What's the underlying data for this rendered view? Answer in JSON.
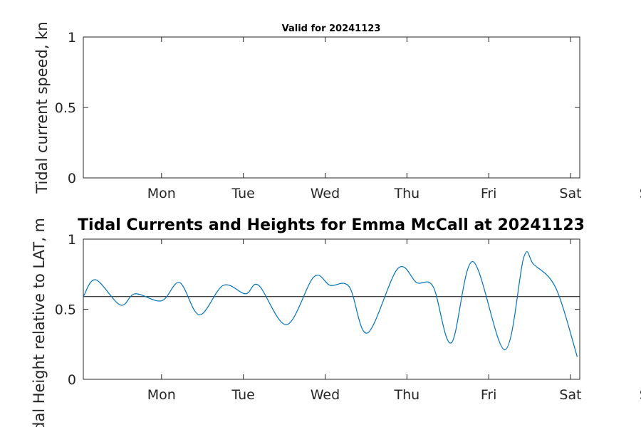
{
  "chart_data": [
    {
      "type": "line",
      "title": "Valid for 20241123",
      "ylabel": "Tidal current speed, kn",
      "ylim": [
        0,
        1
      ],
      "yticks": [
        "0",
        "0.5",
        "1"
      ],
      "xtick_labels": [
        "Mon",
        "Tue",
        "Wed",
        "Thu",
        "Fri",
        "Sat",
        "Sun"
      ],
      "series": []
    },
    {
      "type": "line",
      "title": "Tidal Currents and Heights for Emma McCall at 20241123",
      "ylabel": "Tidal Height relative to LAT, m",
      "ylim": [
        0,
        1
      ],
      "yticks": [
        "0",
        "0.5",
        "1"
      ],
      "xtick_labels": [
        "Mon",
        "Tue",
        "Wed",
        "Thu",
        "Fri",
        "Sat",
        "Sun"
      ],
      "reference_level": 0.59,
      "series": [
        {
          "color": "#0072BD",
          "x": [
            0,
            0.15,
            0.45,
            0.63,
            0.95,
            1.17,
            1.41,
            1.7,
            1.97,
            2.13,
            2.47,
            2.8,
            3.0,
            3.23,
            3.45,
            3.82,
            4.05,
            4.25,
            4.47,
            4.73,
            5.12,
            5.35,
            5.47,
            5.74,
            6.0
          ],
          "values": [
            0.59,
            0.71,
            0.53,
            0.61,
            0.56,
            0.69,
            0.46,
            0.67,
            0.61,
            0.67,
            0.39,
            0.73,
            0.67,
            0.66,
            0.33,
            0.79,
            0.69,
            0.66,
            0.26,
            0.84,
            0.21,
            0.87,
            0.82,
            0.65,
            0.16
          ]
        }
      ]
    }
  ]
}
